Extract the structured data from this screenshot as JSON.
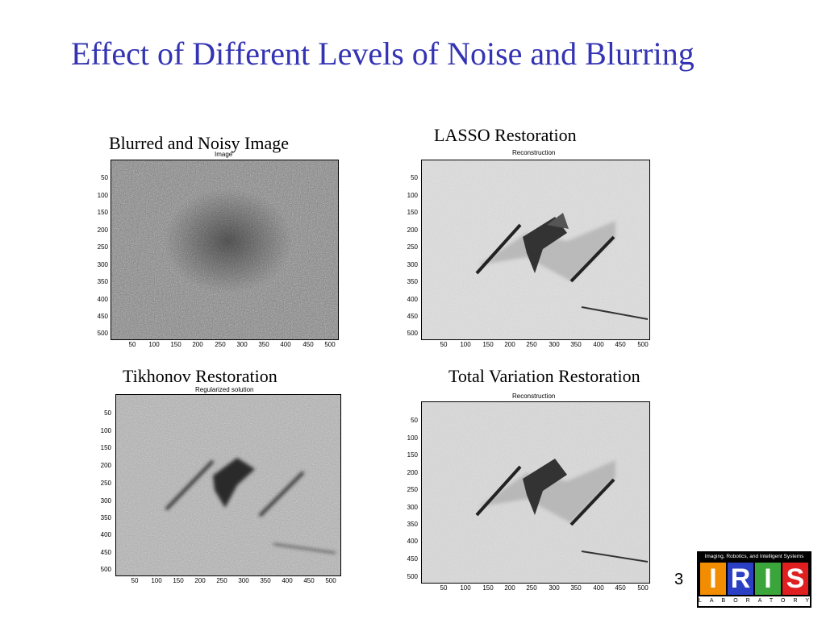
{
  "slide": {
    "title": "Effect of Different Levels of Noise and Blurring",
    "page_number": "3"
  },
  "panels": [
    {
      "caption": "Blurred and Noisy Image",
      "plot_title": "Image"
    },
    {
      "caption": "LASSO  Restoration",
      "plot_title": "Reconstruction"
    },
    {
      "caption": "Tikhonov Restoration",
      "plot_title": "Regularized solution"
    },
    {
      "caption": "Total Variation Restoration",
      "plot_title": "Reconstruction"
    }
  ],
  "axes": {
    "y_ticks": [
      "50",
      "100",
      "150",
      "200",
      "250",
      "300",
      "350",
      "400",
      "450",
      "500"
    ],
    "x_ticks": [
      "50",
      "100",
      "150",
      "200",
      "250",
      "300",
      "350",
      "400",
      "450",
      "500"
    ]
  },
  "logo": {
    "tagline": "Imaging, Robotics, and Intelligent Systems",
    "letters": [
      "I",
      "R",
      "I",
      "S"
    ],
    "letter_colors": [
      "#f28c00",
      "#2b3fc4",
      "#3aa53a",
      "#e02020"
    ],
    "subtitle": "LABORATORY"
  },
  "colors": {
    "title": "#3333b3"
  }
}
